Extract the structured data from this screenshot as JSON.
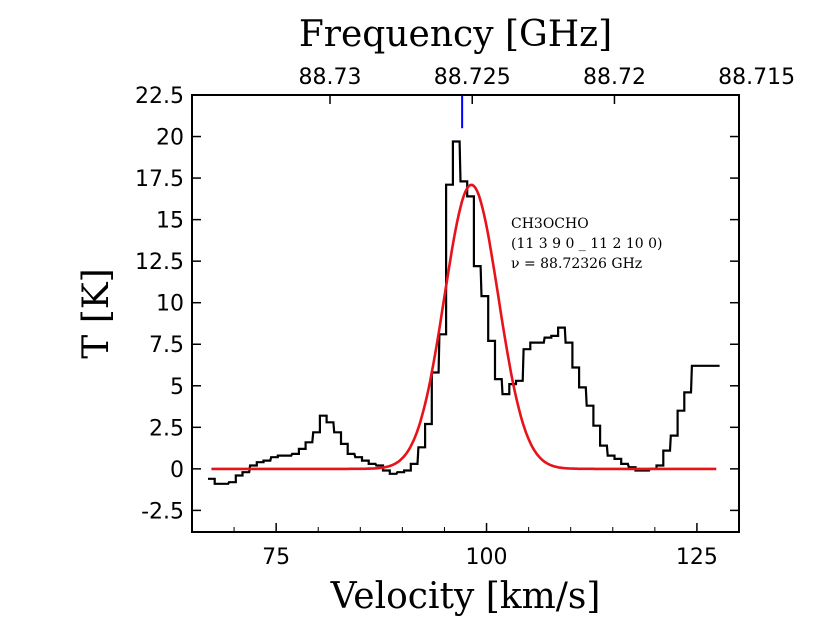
{
  "chart_data": {
    "type": "line",
    "title": "",
    "xlabel": "Velocity [km/s]",
    "ylabel": "T [K]",
    "top_xlabel": "Frequency [GHz]",
    "xlim": [
      65,
      130
    ],
    "ylim": [
      -3.8,
      22.5
    ],
    "x_ticks": [
      75,
      100,
      125
    ],
    "x_tick_labels": [
      "75",
      "100",
      "125"
    ],
    "y_ticks": [
      -2.5,
      0,
      2.5,
      5,
      7.5,
      10,
      12.5,
      15,
      17.5,
      20,
      22.5
    ],
    "y_tick_labels": [
      "-2.5",
      "0",
      "2.5",
      "5",
      "7.5",
      "10",
      "12.5",
      "15",
      "17.5",
      "20",
      "22.5"
    ],
    "top_ticks": [
      {
        "velocity": 81.4,
        "label": "88.73"
      },
      {
        "velocity": 98.3,
        "label": "88.725"
      },
      {
        "velocity": 115.2,
        "label": "88.72"
      },
      {
        "velocity": 132.1,
        "label": "88.715"
      }
    ],
    "line_marker": {
      "velocity": 97.1,
      "y_from": 20.5,
      "y_to": 22.5,
      "color": "#0000ff"
    },
    "annotation": [
      "CH3OCHO",
      "(11 3 9 0 _ 11 2 10 0)",
      "ν = 88.72326 GHz"
    ],
    "series": [
      {
        "type": "step",
        "color": "#000000",
        "x": [
          67.3,
          68.1,
          68.9,
          69.8,
          70.6,
          71.4,
          72.3,
          73.1,
          73.9,
          74.8,
          75.6,
          76.4,
          77.3,
          78.1,
          78.9,
          79.8,
          80.6,
          81.4,
          82.3,
          83.1,
          83.9,
          84.8,
          85.6,
          86.4,
          87.3,
          88.1,
          88.9,
          89.8,
          90.6,
          91.4,
          92.3,
          93.1,
          93.9,
          94.8,
          95.6,
          96.4,
          97.3,
          98.1,
          98.9,
          99.8,
          100.6,
          101.4,
          102.3,
          103.1,
          103.9,
          104.8,
          105.6,
          106.4,
          107.3,
          108.1,
          108.9,
          109.8,
          110.6,
          111.4,
          112.3,
          113.1,
          113.9,
          114.8,
          115.6,
          116.4,
          117.3,
          118.1,
          118.9,
          119.8,
          120.6,
          121.4,
          122.3,
          123.1,
          123.9,
          124.8,
          125.6,
          126.4,
          127.3
        ],
        "y": [
          -0.6,
          -0.9,
          -0.9,
          -0.8,
          -0.4,
          -0.2,
          0.2,
          0.4,
          0.5,
          0.7,
          0.8,
          0.8,
          0.9,
          1.2,
          1.6,
          2.2,
          3.2,
          2.8,
          2.2,
          1.5,
          0.9,
          0.7,
          0.5,
          0.3,
          0.2,
          -0.1,
          -0.3,
          -0.2,
          -0.1,
          0.3,
          1.3,
          2.7,
          5.8,
          8.1,
          17.1,
          19.7,
          17.3,
          16.4,
          12.2,
          10.4,
          7.7,
          5.4,
          4.5,
          5.1,
          5.3,
          7.2,
          7.6,
          7.6,
          7.9,
          8.0,
          8.5,
          7.6,
          6.1,
          4.9,
          3.8,
          2.6,
          1.4,
          0.8,
          0.6,
          0.3,
          0.1,
          -0.1,
          -0.1,
          0.0,
          0.2,
          1.1,
          2.0,
          3.5,
          4.6,
          6.2,
          6.2,
          6.2,
          6.2
        ]
      },
      {
        "type": "gaussian-fit",
        "color": "#e8121a",
        "x_start": 67.3,
        "x_end": 127.3,
        "center": 98.2,
        "amplitude": 17.1,
        "sigma": 3.2
      }
    ]
  }
}
